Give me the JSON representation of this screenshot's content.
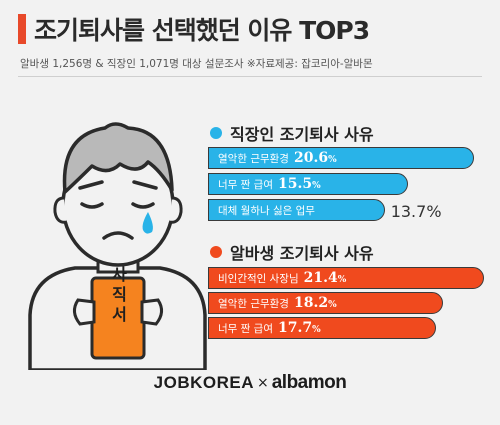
{
  "header": {
    "title": "조기퇴사를 선택했던 이유 TOP3",
    "subtitle": "알바생 1,256명 & 직장인 1,071명 대상 설문조사 ※자료제공: 잡코리아-알바몬"
  },
  "character": {
    "card_text": "사직서"
  },
  "colors": {
    "accent": "#e8492a",
    "worker": "#29b3e8",
    "parttimer": "#f04a1e",
    "card": "#f5831f"
  },
  "chart_data": [
    {
      "type": "bar",
      "title": "직장인 조기퇴사 사유",
      "categories": [
        "열악한 근무환경",
        "너무 짠 급여",
        "대체 월하나 싫은 업무"
      ],
      "values": [
        20.6,
        15.5,
        13.7
      ],
      "unit": "%"
    },
    {
      "type": "bar",
      "title": "알바생 조기퇴사 사유",
      "categories": [
        "비인간적인 사장님",
        "열악한 근무환경",
        "너무 짠 급여"
      ],
      "values": [
        21.4,
        18.2,
        17.7
      ],
      "unit": "%"
    }
  ],
  "footer": {
    "logo_left": "JOBKOREA",
    "logo_sep": "×",
    "logo_right": "albamon"
  }
}
